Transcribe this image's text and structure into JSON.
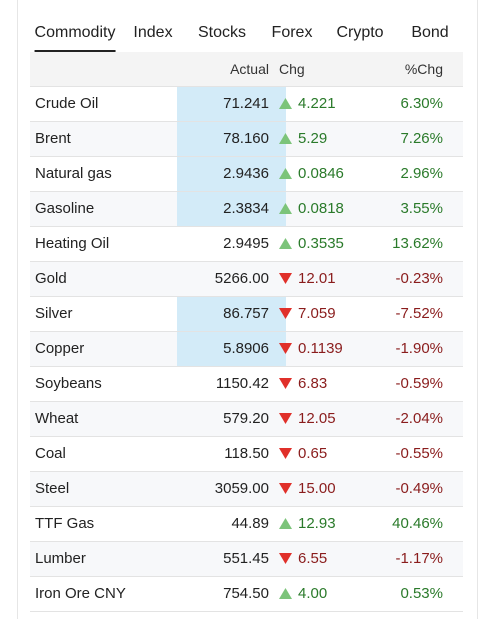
{
  "tabs": [
    "Commodity",
    "Index",
    "Stocks",
    "Forex",
    "Crypto",
    "Bond"
  ],
  "table": {
    "header": [
      "Actual",
      "Chg",
      "%Chg"
    ],
    "rows": [
      [
        "Crude Oil",
        "71.241",
        "4.221",
        "6.30%"
      ],
      [
        "Brent",
        "78.160",
        "5.29",
        "7.26%"
      ],
      [
        "Natural gas",
        "2.9436",
        "0.0846",
        "2.96%"
      ],
      [
        "Gasoline",
        "2.3834",
        "0.0818",
        "3.55%"
      ],
      [
        "Heating Oil",
        "2.9495",
        "0.3535",
        "13.62%"
      ],
      [
        "Gold",
        "5266.00",
        "12.01",
        "-0.23%"
      ],
      [
        "Silver",
        "86.757",
        "7.059",
        "-7.52%"
      ],
      [
        "Copper",
        "5.8906",
        "0.1139",
        "-1.90%"
      ],
      [
        "Soybeans",
        "1150.42",
        "6.83",
        "-0.59%"
      ],
      [
        "Wheat",
        "579.20",
        "12.05",
        "-2.04%"
      ],
      [
        "Coal",
        "118.50",
        "0.65",
        "-0.55%"
      ],
      [
        "Steel",
        "3059.00",
        "15.00",
        "-0.49%"
      ],
      [
        "TTF Gas",
        "44.89",
        "12.93",
        "40.46%"
      ],
      [
        "Lumber",
        "551.45",
        "6.55",
        "-1.17%"
      ],
      [
        "Iron Ore CNY",
        "754.50",
        "4.00",
        "0.53%"
      ]
    ]
  }
}
